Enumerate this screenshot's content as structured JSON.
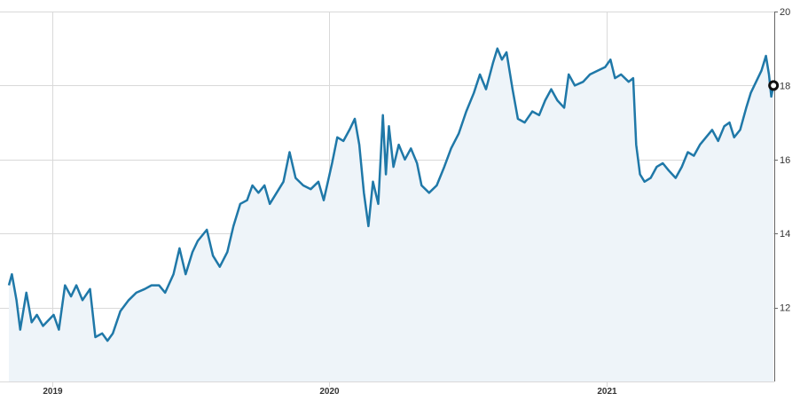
{
  "chart_data": {
    "type": "area",
    "x_ticks": [
      "2019",
      "2020",
      "2021"
    ],
    "y_ticks": [
      12,
      14,
      16,
      18,
      20
    ],
    "xlim": [
      "2018-11-05",
      "2021-08-10"
    ],
    "ylim": [
      10,
      20
    ],
    "grid": true,
    "series": [
      {
        "points": [
          [
            "2018-11-05",
            12.6
          ],
          [
            "2018-11-09",
            12.9
          ],
          [
            "2018-11-15",
            12.2
          ],
          [
            "2018-11-20",
            11.4
          ],
          [
            "2018-11-28",
            12.4
          ],
          [
            "2018-12-05",
            11.6
          ],
          [
            "2018-12-12",
            11.8
          ],
          [
            "2018-12-20",
            11.5
          ],
          [
            "2019-01-03",
            11.8
          ],
          [
            "2019-01-10",
            11.4
          ],
          [
            "2019-01-18",
            12.6
          ],
          [
            "2019-01-26",
            12.3
          ],
          [
            "2019-02-02",
            12.6
          ],
          [
            "2019-02-10",
            12.2
          ],
          [
            "2019-02-20",
            12.5
          ],
          [
            "2019-02-27",
            11.2
          ],
          [
            "2019-03-08",
            11.3
          ],
          [
            "2019-03-15",
            11.1
          ],
          [
            "2019-03-22",
            11.3
          ],
          [
            "2019-04-01",
            11.9
          ],
          [
            "2019-04-12",
            12.2
          ],
          [
            "2019-04-22",
            12.4
          ],
          [
            "2019-05-03",
            12.5
          ],
          [
            "2019-05-12",
            12.6
          ],
          [
            "2019-05-22",
            12.6
          ],
          [
            "2019-05-30",
            12.4
          ],
          [
            "2019-06-10",
            12.9
          ],
          [
            "2019-06-18",
            13.6
          ],
          [
            "2019-06-26",
            12.9
          ],
          [
            "2019-07-05",
            13.5
          ],
          [
            "2019-07-12",
            13.8
          ],
          [
            "2019-07-24",
            14.1
          ],
          [
            "2019-08-01",
            13.4
          ],
          [
            "2019-08-10",
            13.1
          ],
          [
            "2019-08-20",
            13.5
          ],
          [
            "2019-08-28",
            14.2
          ],
          [
            "2019-09-06",
            14.8
          ],
          [
            "2019-09-15",
            14.9
          ],
          [
            "2019-09-22",
            15.3
          ],
          [
            "2019-09-30",
            15.1
          ],
          [
            "2019-10-08",
            15.3
          ],
          [
            "2019-10-15",
            14.8
          ],
          [
            "2019-10-24",
            15.1
          ],
          [
            "2019-11-02",
            15.4
          ],
          [
            "2019-11-10",
            16.2
          ],
          [
            "2019-11-18",
            15.5
          ],
          [
            "2019-11-28",
            15.3
          ],
          [
            "2019-12-08",
            15.2
          ],
          [
            "2019-12-18",
            15.4
          ],
          [
            "2019-12-25",
            14.9
          ],
          [
            "2020-01-05",
            15.9
          ],
          [
            "2020-01-12",
            16.6
          ],
          [
            "2020-01-20",
            16.5
          ],
          [
            "2020-01-28",
            16.8
          ],
          [
            "2020-02-04",
            17.1
          ],
          [
            "2020-02-10",
            16.4
          ],
          [
            "2020-02-16",
            15.1
          ],
          [
            "2020-02-22",
            14.2
          ],
          [
            "2020-02-28",
            15.4
          ],
          [
            "2020-03-06",
            14.8
          ],
          [
            "2020-03-12",
            17.2
          ],
          [
            "2020-03-16",
            15.6
          ],
          [
            "2020-03-20",
            16.9
          ],
          [
            "2020-03-26",
            15.8
          ],
          [
            "2020-04-02",
            16.4
          ],
          [
            "2020-04-10",
            16.0
          ],
          [
            "2020-04-18",
            16.3
          ],
          [
            "2020-04-26",
            15.9
          ],
          [
            "2020-05-02",
            15.3
          ],
          [
            "2020-05-12",
            15.1
          ],
          [
            "2020-05-22",
            15.3
          ],
          [
            "2020-06-01",
            15.8
          ],
          [
            "2020-06-10",
            16.3
          ],
          [
            "2020-06-20",
            16.7
          ],
          [
            "2020-06-30",
            17.3
          ],
          [
            "2020-07-10",
            17.8
          ],
          [
            "2020-07-18",
            18.3
          ],
          [
            "2020-07-26",
            17.9
          ],
          [
            "2020-08-04",
            18.6
          ],
          [
            "2020-08-10",
            19.0
          ],
          [
            "2020-08-16",
            18.7
          ],
          [
            "2020-08-22",
            18.9
          ],
          [
            "2020-08-30",
            17.9
          ],
          [
            "2020-09-06",
            17.1
          ],
          [
            "2020-09-15",
            17.0
          ],
          [
            "2020-09-25",
            17.3
          ],
          [
            "2020-10-04",
            17.2
          ],
          [
            "2020-10-12",
            17.6
          ],
          [
            "2020-10-20",
            17.9
          ],
          [
            "2020-10-28",
            17.6
          ],
          [
            "2020-11-06",
            17.4
          ],
          [
            "2020-11-12",
            18.3
          ],
          [
            "2020-11-20",
            18.0
          ],
          [
            "2020-12-01",
            18.1
          ],
          [
            "2020-12-10",
            18.3
          ],
          [
            "2020-12-20",
            18.4
          ],
          [
            "2020-12-30",
            18.5
          ],
          [
            "2021-01-06",
            18.7
          ],
          [
            "2021-01-12",
            18.2
          ],
          [
            "2021-01-20",
            18.3
          ],
          [
            "2021-01-30",
            18.1
          ],
          [
            "2021-02-05",
            18.2
          ],
          [
            "2021-02-09",
            16.4
          ],
          [
            "2021-02-14",
            15.6
          ],
          [
            "2021-02-20",
            15.4
          ],
          [
            "2021-02-28",
            15.5
          ],
          [
            "2021-03-08",
            15.8
          ],
          [
            "2021-03-16",
            15.9
          ],
          [
            "2021-03-24",
            15.7
          ],
          [
            "2021-04-02",
            15.5
          ],
          [
            "2021-04-10",
            15.8
          ],
          [
            "2021-04-18",
            16.2
          ],
          [
            "2021-04-26",
            16.1
          ],
          [
            "2021-05-04",
            16.4
          ],
          [
            "2021-05-12",
            16.6
          ],
          [
            "2021-05-20",
            16.8
          ],
          [
            "2021-05-28",
            16.5
          ],
          [
            "2021-06-05",
            16.9
          ],
          [
            "2021-06-12",
            17.0
          ],
          [
            "2021-06-18",
            16.6
          ],
          [
            "2021-06-26",
            16.8
          ],
          [
            "2021-07-04",
            17.4
          ],
          [
            "2021-07-10",
            17.8
          ],
          [
            "2021-07-17",
            18.1
          ],
          [
            "2021-07-24",
            18.4
          ],
          [
            "2021-07-30",
            18.8
          ],
          [
            "2021-08-03",
            18.3
          ],
          [
            "2021-08-06",
            17.7
          ],
          [
            "2021-08-09",
            18.0
          ]
        ]
      }
    ],
    "current_marker": [
      "2021-08-09",
      18.0
    ],
    "colors": {
      "line": "#1f78a8",
      "fill": "#eef4f9",
      "grid": "#d9d9d9",
      "axis": "#666666",
      "marker_fill": "#ffffff",
      "marker_stroke": "#111111"
    }
  }
}
